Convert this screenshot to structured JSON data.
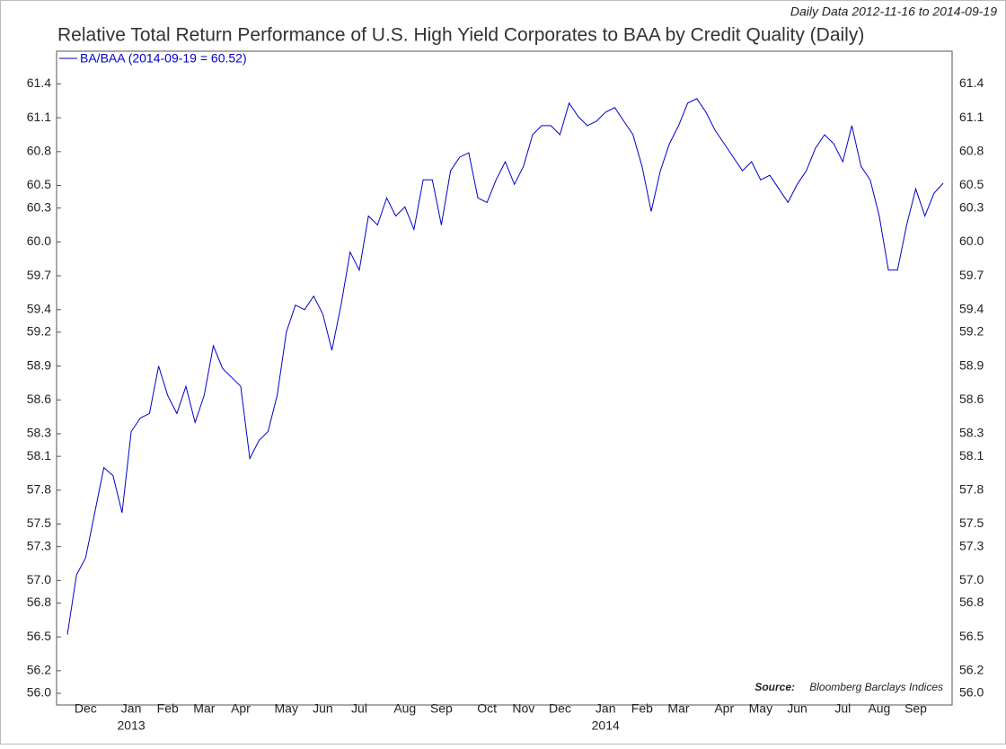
{
  "chart_data": {
    "type": "line",
    "title": "Relative Total Return Performance of U.S. High Yield Corporates to BAA by Credit Quality (Daily)",
    "date_range": "Daily Data 2012-11-16 to 2014-09-19",
    "source_label": "Source:",
    "source": "Bloomberg Barclays Indices",
    "categories": [
      null,
      null,
      "Dec",
      null,
      null,
      null,
      null,
      "Jan",
      null,
      null,
      null,
      "Feb",
      null,
      null,
      null,
      "Mar",
      null,
      null,
      null,
      "Apr",
      null,
      null,
      null,
      null,
      "May",
      null,
      null,
      null,
      "Jun",
      null,
      null,
      null,
      "Jul",
      null,
      null,
      null,
      null,
      "Aug",
      null,
      null,
      null,
      "Sep",
      null,
      null,
      null,
      null,
      "Oct",
      null,
      null,
      null,
      "Nov",
      null,
      null,
      null,
      "Dec",
      null,
      null,
      null,
      null,
      "Jan",
      null,
      null,
      null,
      "Feb",
      null,
      null,
      null,
      "Mar",
      null,
      null,
      null,
      null,
      "Apr",
      null,
      null,
      null,
      "May",
      null,
      null,
      null,
      "Jun",
      null,
      null,
      null,
      null,
      "Jul",
      null,
      null,
      null,
      "Aug",
      null,
      null,
      null,
      "Sep",
      null,
      null,
      null
    ],
    "years": [
      null,
      null,
      null,
      null,
      null,
      null,
      null,
      "2013",
      null,
      null,
      null,
      null,
      null,
      null,
      null,
      null,
      null,
      null,
      null,
      null,
      null,
      null,
      null,
      null,
      null,
      null,
      null,
      null,
      null,
      null,
      null,
      null,
      null,
      null,
      null,
      null,
      null,
      null,
      null,
      null,
      null,
      null,
      null,
      null,
      null,
      null,
      null,
      null,
      null,
      null,
      null,
      null,
      null,
      null,
      null,
      null,
      null,
      null,
      null,
      "2014",
      null,
      null,
      null,
      null,
      null,
      null,
      null,
      null,
      null,
      null,
      null,
      null,
      null,
      null,
      null,
      null,
      null,
      null,
      null,
      null,
      null,
      null,
      null,
      null,
      null,
      null,
      null,
      null,
      null,
      null,
      null,
      null,
      null,
      null,
      null,
      null,
      null
    ],
    "series": [
      {
        "name": "BA/BAA (2014-09-19 = 60.52)",
        "color": "#0000cc",
        "values": [
          56.52,
          57.05,
          57.2,
          57.6,
          58.0,
          57.93,
          57.6,
          58.32,
          58.44,
          58.48,
          58.9,
          58.64,
          58.48,
          58.72,
          58.4,
          58.64,
          59.08,
          58.88,
          58.8,
          58.72,
          58.08,
          58.24,
          58.32,
          58.64,
          59.2,
          59.44,
          59.4,
          59.52,
          59.36,
          59.04,
          59.44,
          59.91,
          59.75,
          60.23,
          60.15,
          60.39,
          60.23,
          60.31,
          60.11,
          60.55,
          60.55,
          60.15,
          60.63,
          60.75,
          60.79,
          60.39,
          60.35,
          60.55,
          60.71,
          60.51,
          60.67,
          60.95,
          61.03,
          61.03,
          60.95,
          61.23,
          61.11,
          61.03,
          61.07,
          61.15,
          61.19,
          61.07,
          60.95,
          60.67,
          60.27,
          60.63,
          60.87,
          61.03,
          61.23,
          61.27,
          61.15,
          60.99,
          60.87,
          60.75,
          60.63,
          60.71,
          60.55,
          60.59,
          60.47,
          60.35,
          60.51,
          60.63,
          60.83,
          60.95,
          60.87,
          60.71,
          61.03,
          60.67,
          60.55,
          60.23,
          59.75,
          59.75,
          60.15,
          60.47,
          60.23,
          60.43,
          60.52
        ]
      }
    ],
    "ylim": [
      56,
      61.69
    ],
    "yticks": [
      {
        "value": 56,
        "label": "56.0"
      },
      56.2,
      56.5,
      56.8,
      {
        "value": 57,
        "label": "57.0"
      },
      57.3,
      57.5,
      57.8,
      58.1,
      58.3,
      58.6,
      58.9,
      59.2,
      59.4,
      59.7,
      {
        "value": 60,
        "label": "60.0"
      },
      60.3,
      60.5,
      60.8,
      61.1,
      61.4
    ],
    "grid": false
  }
}
